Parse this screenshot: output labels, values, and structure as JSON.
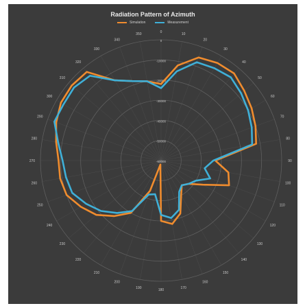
{
  "colors": {
    "background": "#3b3b3b",
    "grid": "#5f5f5f",
    "label": "#c9c9c9",
    "simulation": "#f08c2e",
    "measurement": "#3fb0d8"
  },
  "chart_data": {
    "type": "radar",
    "title": "Radiation Pattern of Azimuth",
    "legend_position": "top",
    "angle_direction": "clockwise",
    "angle_labels": [
      0,
      10,
      20,
      30,
      40,
      50,
      60,
      70,
      80,
      90,
      100,
      110,
      120,
      130,
      140,
      150,
      160,
      170,
      180,
      190,
      200,
      210,
      220,
      230,
      240,
      250,
      260,
      270,
      280,
      290,
      300,
      310,
      320,
      330,
      340,
      350
    ],
    "radial_axis": {
      "min": -60000,
      "max": 0,
      "ticks": [
        -60000,
        -50000,
        -40000,
        -30000,
        -20000,
        -10000,
        0
      ],
      "tick_labels": [
        "-60000",
        "-50000",
        "-40000",
        "-30000",
        "-20000",
        "-10000",
        "0"
      ]
    },
    "series": [
      {
        "name": "Simulation",
        "color": "#f08c2e",
        "angles": [
          0,
          10,
          20,
          30,
          40,
          50,
          60,
          70,
          80,
          90,
          100,
          110,
          120,
          130,
          140,
          150,
          160,
          170,
          180,
          190,
          200,
          210,
          220,
          230,
          240,
          250,
          260,
          270,
          280,
          290,
          300,
          310,
          320,
          330,
          340,
          350
        ],
        "values": [
          -22000,
          -12000,
          -5500,
          -4000,
          -3500,
          -6000,
          -8000,
          -10000,
          -12000,
          -33000,
          -26000,
          -24000,
          -36000,
          -42000,
          -44000,
          -40000,
          -32000,
          -28000,
          -30000,
          -58000,
          -44000,
          -30000,
          -24000,
          -18000,
          -14000,
          -10000,
          -9000,
          -9000,
          -7000,
          -4500,
          -2500,
          -2000,
          -2500,
          -14000,
          -18000,
          -20000
        ]
      },
      {
        "name": "Measurement",
        "color": "#3fb0d8",
        "angles": [
          0,
          10,
          20,
          30,
          40,
          50,
          60,
          70,
          80,
          90,
          100,
          110,
          120,
          130,
          140,
          150,
          160,
          170,
          180,
          190,
          200,
          210,
          220,
          230,
          240,
          250,
          260,
          270,
          280,
          290,
          300,
          310,
          320,
          330,
          340,
          350
        ],
        "values": [
          -24000,
          -15000,
          -8000,
          -7000,
          -6000,
          -8000,
          -10000,
          -12000,
          -14000,
          -34000,
          -38000,
          -34000,
          -40000,
          -42000,
          -44000,
          -42000,
          -34000,
          -31000,
          -33000,
          -43000,
          -42000,
          -31000,
          -26000,
          -21000,
          -17000,
          -13000,
          -12000,
          -11000,
          -8000,
          -3500,
          -4000,
          -3500,
          -5000,
          -14000,
          -18000,
          -20000
        ]
      }
    ]
  }
}
